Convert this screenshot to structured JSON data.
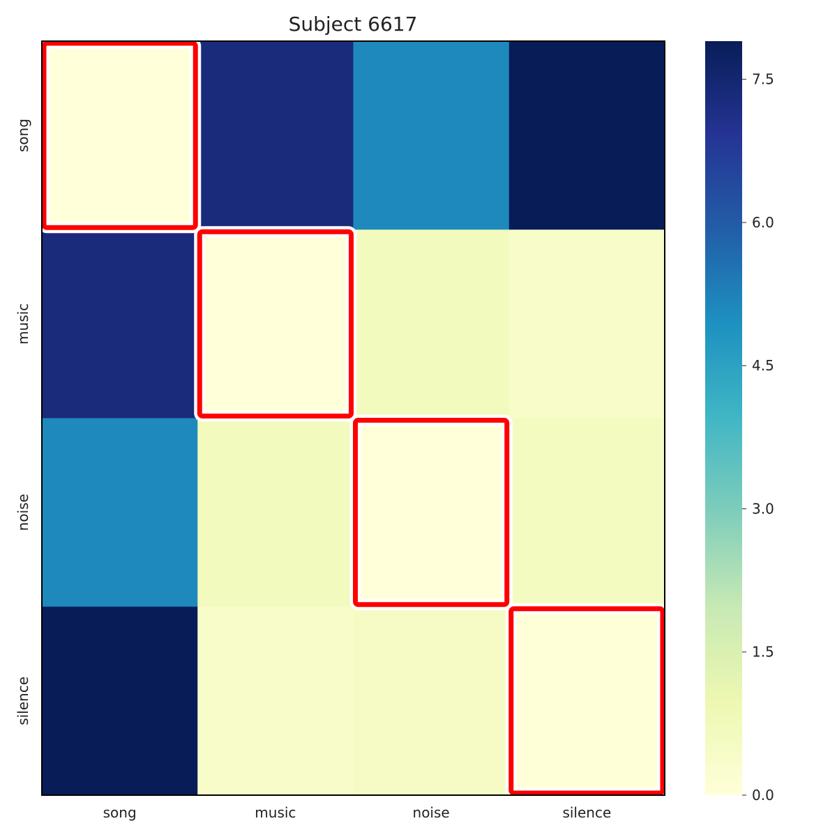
{
  "chart_data": {
    "type": "heatmap",
    "title": "Subject 6617",
    "xlabel": "",
    "ylabel": "",
    "x_categories": [
      "song",
      "music",
      "noise",
      "silence"
    ],
    "y_categories": [
      "song",
      "music",
      "noise",
      "silence"
    ],
    "values": [
      [
        0.0,
        7.3,
        5.1,
        7.9
      ],
      [
        7.3,
        0.0,
        0.7,
        0.4
      ],
      [
        5.1,
        0.7,
        0.0,
        0.6
      ],
      [
        7.9,
        0.4,
        0.5,
        0.05
      ]
    ],
    "colormap": "YlGnBu",
    "colorbar": {
      "range": [
        0,
        7.9
      ],
      "ticks": [
        0.0,
        1.5,
        3.0,
        4.5,
        6.0,
        7.5
      ],
      "tick_labels": [
        "0.0",
        "1.5",
        "3.0",
        "4.5",
        "6.0",
        "7.5"
      ]
    },
    "highlight_boxes": [
      {
        "rows": [
          0,
          0
        ],
        "cols": [
          0,
          0
        ]
      },
      {
        "rows": [
          1,
          1
        ],
        "cols": [
          1,
          1
        ]
      },
      {
        "rows": [
          2,
          2
        ],
        "cols": [
          2,
          2
        ]
      },
      {
        "rows": [
          3,
          3
        ],
        "cols": [
          3,
          3
        ]
      }
    ],
    "highlight_color": "#ff0000",
    "grid": false
  }
}
